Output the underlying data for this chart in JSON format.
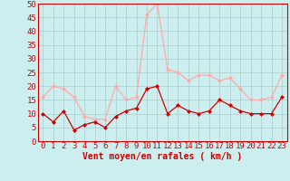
{
  "x": [
    0,
    1,
    2,
    3,
    4,
    5,
    6,
    7,
    8,
    9,
    10,
    11,
    12,
    13,
    14,
    15,
    16,
    17,
    18,
    19,
    20,
    21,
    22,
    23
  ],
  "wind_avg": [
    10,
    7,
    11,
    4,
    6,
    7,
    5,
    9,
    11,
    12,
    19,
    20,
    10,
    13,
    11,
    10,
    11,
    15,
    13,
    11,
    10,
    10,
    10,
    16
  ],
  "wind_gust": [
    16,
    20,
    19,
    16,
    9,
    8,
    8,
    20,
    15,
    16,
    46,
    50,
    26,
    25,
    22,
    24,
    24,
    22,
    23,
    19,
    15,
    15,
    16,
    24
  ],
  "ylim": [
    0,
    50
  ],
  "yticks": [
    0,
    5,
    10,
    15,
    20,
    25,
    30,
    35,
    40,
    45,
    50
  ],
  "xlabel": "Vent moyen/en rafales ( km/h )",
  "line_color_avg": "#cc0000",
  "line_color_gust": "#ffaaaa",
  "bg_color": "#cceeee",
  "grid_color": "#aacccc",
  "marker_size": 2.5,
  "xlabel_fontsize": 7,
  "tick_fontsize": 6.5,
  "spine_color": "#cc0000"
}
